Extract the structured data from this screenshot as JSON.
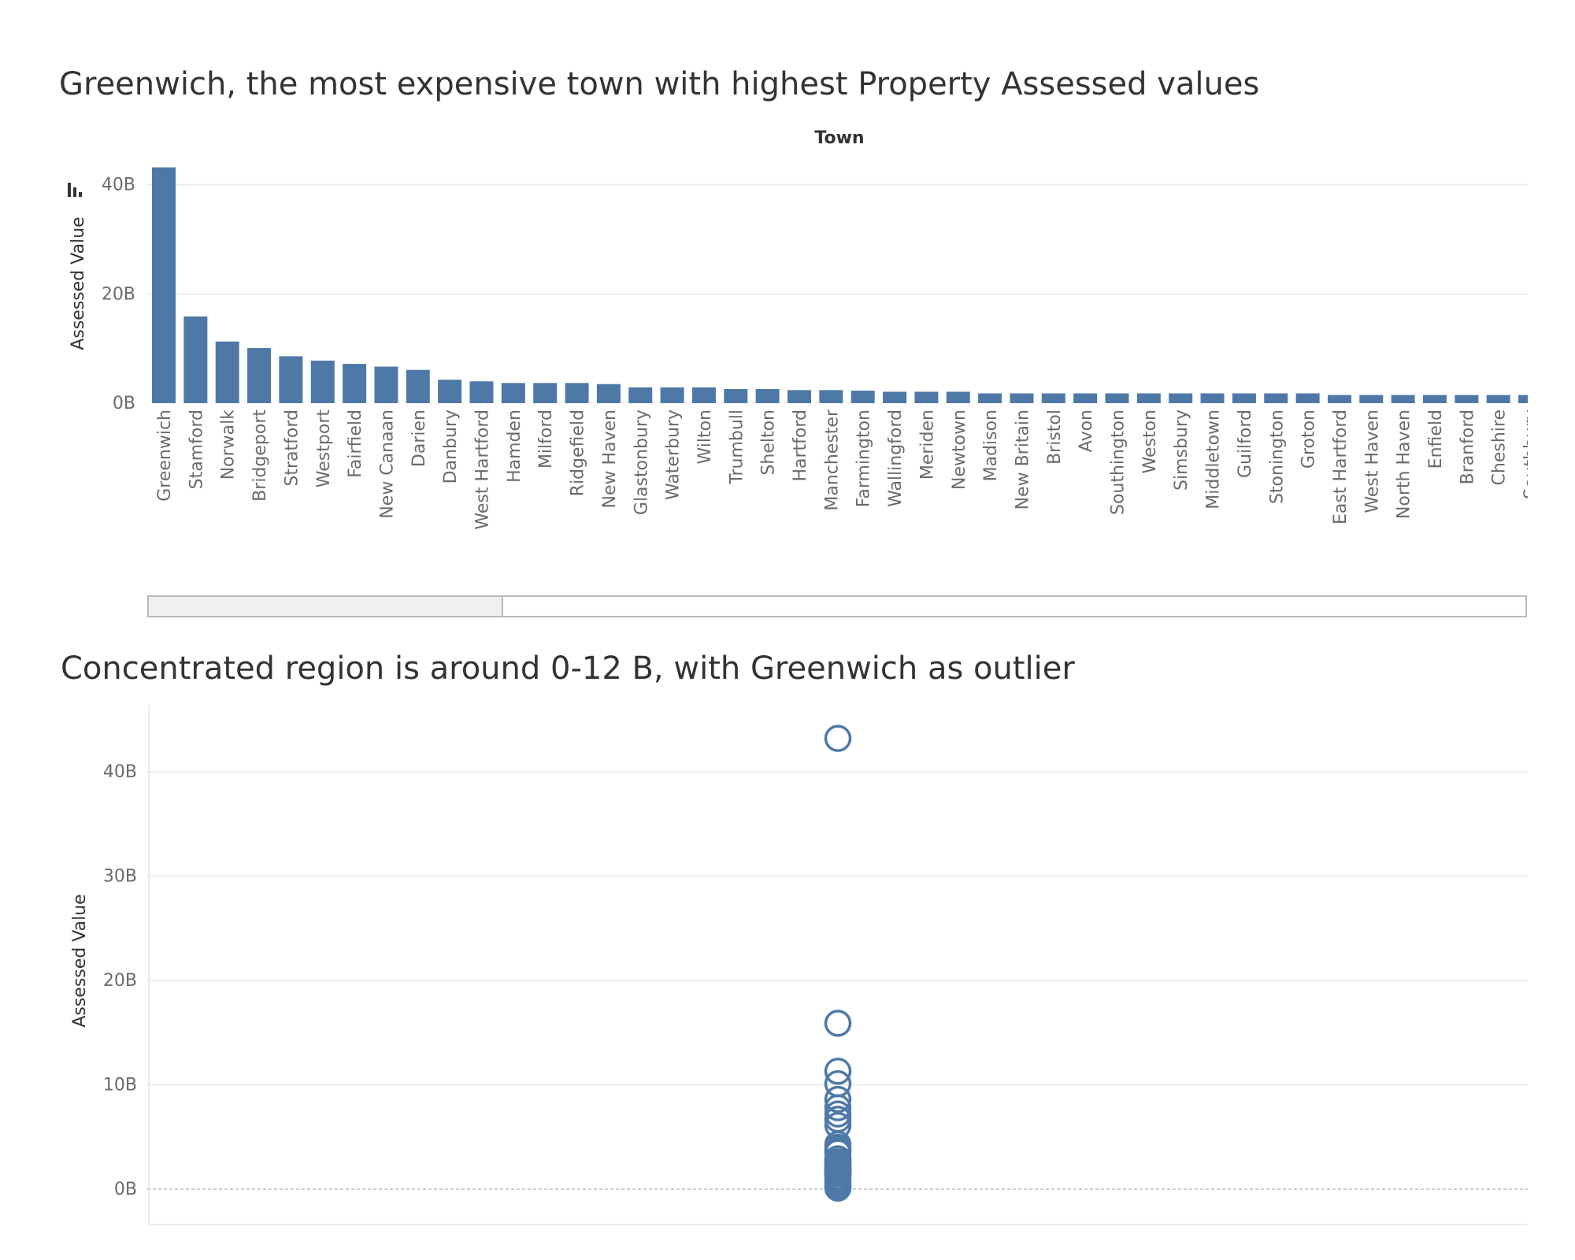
{
  "charts": {
    "top_title": "Greenwich, the most expensive town with highest Property Assessed values",
    "bottom_title": "Concentrated region is around 0-12 B, with Greenwich as outlier"
  },
  "colors": {
    "mark": "#4e79a7",
    "grid": "#ececec",
    "axis_text": "#6b6b6b",
    "label_text": "#333333",
    "zero_line": "#bdbdbd"
  },
  "chart_data": [
    {
      "type": "bar",
      "title": "Greenwich, the most expensive town with highest Property Assessed values",
      "column_header": "Town",
      "ylabel": "Assessed Value",
      "ylim": [
        0,
        44
      ],
      "yticks": [
        {
          "value": 0,
          "label": "0B"
        },
        {
          "value": 20,
          "label": "20B"
        },
        {
          "value": 40,
          "label": "40B"
        }
      ],
      "grid": true,
      "categories": [
        "Greenwich",
        "Stamford",
        "Norwalk",
        "Bridgeport",
        "Stratford",
        "Westport",
        "Fairfield",
        "New Canaan",
        "Darien",
        "Danbury",
        "West Hartford",
        "Hamden",
        "Milford",
        "Ridgefield",
        "New Haven",
        "Glastonbury",
        "Waterbury",
        "Wilton",
        "Trumbull",
        "Shelton",
        "Hartford",
        "Manchester",
        "Farmington",
        "Wallingford",
        "Meriden",
        "Newtown",
        "Madison",
        "New Britain",
        "Bristol",
        "Avon",
        "Southington",
        "Weston",
        "Simsbury",
        "Middletown",
        "Guilford",
        "Stonington",
        "Groton",
        "East Hartford",
        "West Haven",
        "North Haven",
        "Enfield",
        "Branford",
        "Cheshire",
        "Southbury"
      ],
      "values": [
        43.2,
        15.9,
        11.3,
        10.1,
        8.6,
        7.8,
        7.2,
        6.7,
        6.1,
        4.3,
        4.0,
        3.7,
        3.7,
        3.7,
        3.5,
        2.9,
        2.9,
        2.9,
        2.6,
        2.6,
        2.4,
        2.4,
        2.3,
        2.1,
        2.1,
        2.1,
        1.8,
        1.8,
        1.8,
        1.8,
        1.8,
        1.8,
        1.8,
        1.8,
        1.8,
        1.8,
        1.8,
        1.5,
        1.5,
        1.5,
        1.5,
        1.5,
        1.5,
        1.5
      ]
    },
    {
      "type": "scatter",
      "title": "Concentrated region is around 0-12 B, with Greenwich as outlier",
      "ylabel": "Assessed Value",
      "ylim": [
        -3.5,
        47
      ],
      "yticks": [
        {
          "value": 0,
          "label": "0B"
        },
        {
          "value": 10,
          "label": "10B"
        },
        {
          "value": 20,
          "label": "20B"
        },
        {
          "value": 30,
          "label": "30B"
        },
        {
          "value": 40,
          "label": "40B"
        }
      ],
      "grid": true,
      "values": [
        43.2,
        15.9,
        11.3,
        10.1,
        8.6,
        7.8,
        7.2,
        6.7,
        6.1,
        4.3,
        4.0,
        3.7,
        3.7,
        3.7,
        3.5,
        2.9,
        2.9,
        2.9,
        2.6,
        2.6,
        2.4,
        2.4,
        2.3,
        2.1,
        2.1,
        2.1,
        1.8,
        1.8,
        1.8,
        1.8,
        1.8,
        1.8,
        1.8,
        1.8,
        1.8,
        1.8,
        1.8,
        1.5,
        1.5,
        1.5,
        1.5,
        1.5,
        1.5,
        1.5,
        1.2,
        1.0,
        0.8,
        0.6,
        0.4,
        0.2,
        0.1
      ]
    }
  ]
}
